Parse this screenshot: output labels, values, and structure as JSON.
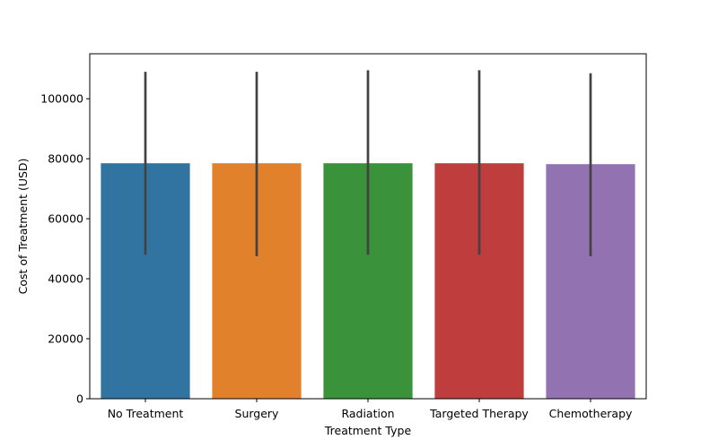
{
  "chart_data": {
    "type": "bar",
    "title": "",
    "xlabel": "Treatment Type",
    "ylabel": "Cost of Treatment (USD)",
    "ylim": [
      0,
      115000
    ],
    "yticks": [
      0,
      20000,
      40000,
      60000,
      80000,
      100000
    ],
    "ytick_labels": [
      "0",
      "20000",
      "40000",
      "60000",
      "80000",
      "100000"
    ],
    "categories": [
      "No Treatment",
      "Surgery",
      "Radiation",
      "Targeted Therapy",
      "Chemotherapy"
    ],
    "values": [
      78500,
      78500,
      78500,
      78500,
      78200
    ],
    "error_low": [
      48000,
      47500,
      48000,
      48000,
      47500
    ],
    "error_high": [
      109000,
      109000,
      109500,
      109500,
      108500
    ],
    "colors": [
      "#3274a1",
      "#e1812c",
      "#3a923a",
      "#c03d3e",
      "#9372b2"
    ],
    "error_color": "#424242",
    "grid": false,
    "legend": "none"
  }
}
